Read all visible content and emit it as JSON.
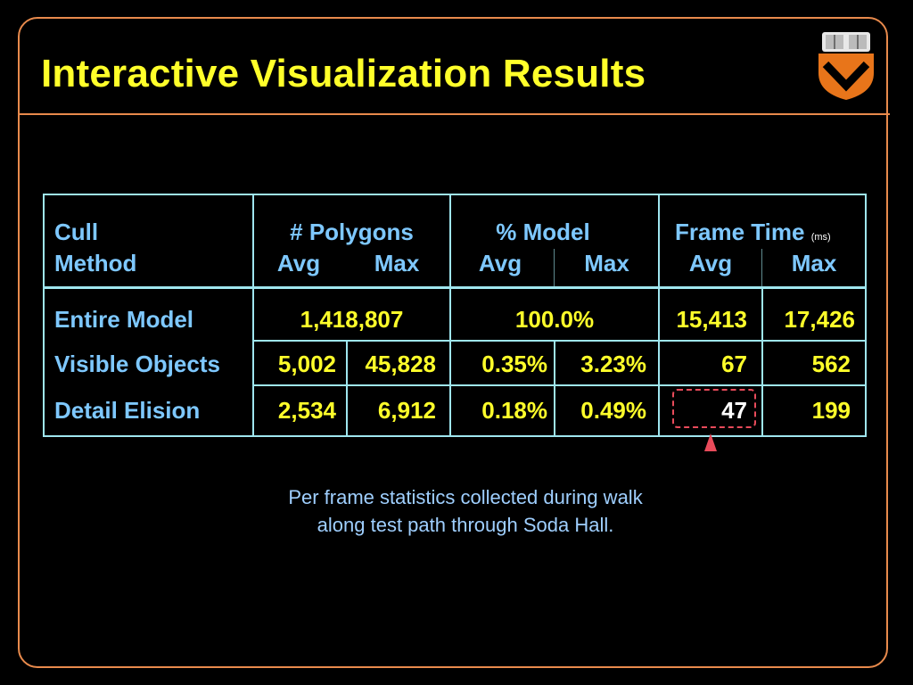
{
  "slide": {
    "title": "Interactive Visualization Results",
    "caption_line1": "Per frame statistics collected during walk",
    "caption_line2": "along test path through Soda Hall."
  },
  "colors": {
    "border": "#e88a4c",
    "title": "#ffff2a",
    "header": "#7ec8ff",
    "grid": "#9fe6ef",
    "highlight": "#e94b5b"
  },
  "table": {
    "headers": {
      "cull_line1": "Cull",
      "cull_line2": "Method",
      "polygons": "# Polygons",
      "model": "% Model",
      "frametime": "Frame Time",
      "frametime_unit": "(ms)",
      "avg": "Avg",
      "max": "Max"
    },
    "rows": [
      {
        "method": "Entire Model",
        "poly_merged": "1,418,807",
        "model_merged": "100.0%",
        "ft_avg": "15,413",
        "ft_max": "17,426"
      },
      {
        "method": "Visible Objects",
        "poly_avg": "5,002",
        "poly_max": "45,828",
        "model_avg": "0.35%",
        "model_max": "3.23%",
        "ft_avg": "67",
        "ft_max": "562"
      },
      {
        "method": "Detail Elision",
        "poly_avg": "2,534",
        "poly_max": "6,912",
        "model_avg": "0.18%",
        "model_max": "0.49%",
        "ft_avg": "47",
        "ft_max": "199"
      }
    ]
  }
}
